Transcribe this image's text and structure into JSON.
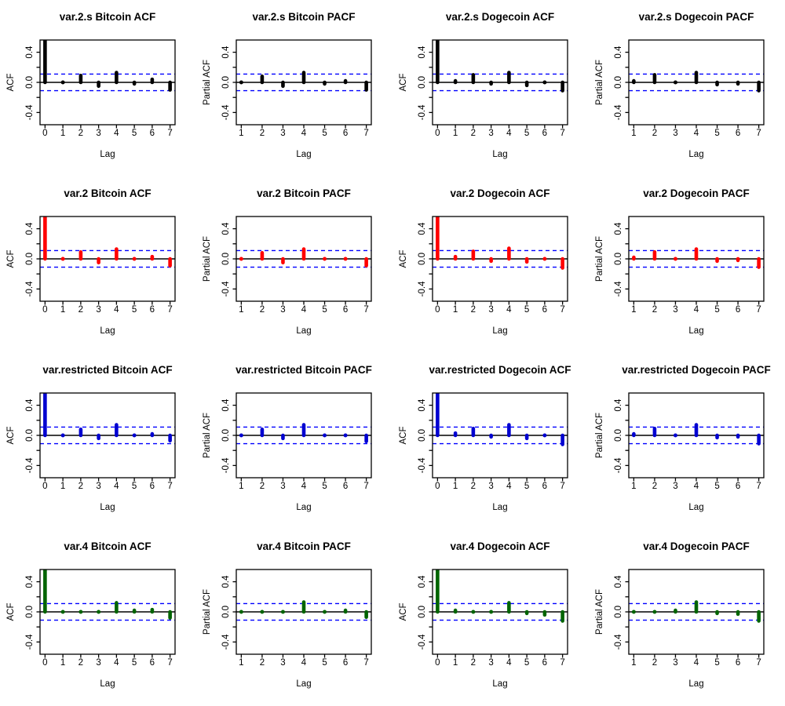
{
  "page": {
    "background": "#ffffff"
  },
  "chart_data": {
    "type": "bar",
    "subtype": "acf-pacf-grid",
    "grid": {
      "rows": 4,
      "cols": 4
    },
    "xlabel": "Lag",
    "ylim": [
      -0.5625,
      0.5625
    ],
    "yticks": [
      -0.4,
      -0.2,
      0.0,
      0.2,
      0.4
    ],
    "ytick_labels": [
      "-0.4",
      "0.0",
      "0.4"
    ],
    "ytick_label_values": [
      -0.4,
      0.0,
      0.4
    ],
    "conf_band": 0.11,
    "conf_line_color": "#0000FF",
    "zero_line_color": "#000000",
    "grid_off": true,
    "models": [
      "var.2.s",
      "var.2",
      "var.restricted",
      "var.4"
    ],
    "model_colors": [
      "#000000",
      "#FF0000",
      "#0000D0",
      "#006400"
    ],
    "charts": [
      {
        "title": "var.2.s Bitcoin ACF",
        "ylabel": "ACF",
        "color": "#000000",
        "lags": [
          0,
          1,
          2,
          3,
          4,
          5,
          6,
          7
        ],
        "values": [
          1.0,
          0.01,
          0.09,
          -0.05,
          0.13,
          -0.02,
          0.04,
          -0.1
        ]
      },
      {
        "title": "var.2.s Bitcoin PACF",
        "ylabel": "Partial ACF",
        "color": "#000000",
        "lags": [
          1,
          2,
          3,
          4,
          5,
          6,
          7
        ],
        "values": [
          0.01,
          0.08,
          -0.05,
          0.13,
          -0.02,
          0.02,
          -0.1
        ]
      },
      {
        "title": "var.2.s Dogecoin ACF",
        "ylabel": "ACF",
        "color": "#000000",
        "lags": [
          0,
          1,
          2,
          3,
          4,
          5,
          6,
          7
        ],
        "values": [
          1.0,
          0.02,
          0.1,
          -0.02,
          0.13,
          -0.04,
          0.01,
          -0.11
        ]
      },
      {
        "title": "var.2.s Dogecoin PACF",
        "ylabel": "Partial ACF",
        "color": "#000000",
        "lags": [
          1,
          2,
          3,
          4,
          5,
          6,
          7
        ],
        "values": [
          0.02,
          0.1,
          -0.01,
          0.13,
          -0.03,
          -0.02,
          -0.11
        ]
      },
      {
        "title": "var.2 Bitcoin ACF",
        "ylabel": "ACF",
        "color": "#FF0000",
        "lags": [
          0,
          1,
          2,
          3,
          4,
          5,
          6,
          7
        ],
        "values": [
          1.0,
          0.01,
          0.09,
          -0.05,
          0.13,
          -0.01,
          0.03,
          -0.09
        ]
      },
      {
        "title": "var.2 Bitcoin PACF",
        "ylabel": "Partial ACF",
        "color": "#FF0000",
        "lags": [
          1,
          2,
          3,
          4,
          5,
          6,
          7
        ],
        "values": [
          0.01,
          0.08,
          -0.05,
          0.13,
          -0.01,
          0.01,
          -0.09
        ]
      },
      {
        "title": "var.2 Dogecoin ACF",
        "ylabel": "ACF",
        "color": "#FF0000",
        "lags": [
          0,
          1,
          2,
          3,
          4,
          5,
          6,
          7
        ],
        "values": [
          1.0,
          0.03,
          0.1,
          -0.03,
          0.14,
          -0.04,
          -0.01,
          -0.12
        ]
      },
      {
        "title": "var.2 Dogecoin PACF",
        "ylabel": "Partial ACF",
        "color": "#FF0000",
        "lags": [
          1,
          2,
          3,
          4,
          5,
          6,
          7
        ],
        "values": [
          0.02,
          0.09,
          -0.01,
          0.13,
          -0.03,
          -0.02,
          -0.11
        ]
      },
      {
        "title": "var.restricted Bitcoin ACF",
        "ylabel": "ACF",
        "color": "#0000D0",
        "lags": [
          0,
          1,
          2,
          3,
          4,
          5,
          6,
          7
        ],
        "values": [
          1.0,
          0.01,
          0.08,
          -0.04,
          0.14,
          -0.01,
          0.02,
          -0.07
        ]
      },
      {
        "title": "var.restricted Bitcoin PACF",
        "ylabel": "Partial ACF",
        "color": "#0000D0",
        "lags": [
          1,
          2,
          3,
          4,
          5,
          6,
          7
        ],
        "values": [
          0.01,
          0.08,
          -0.04,
          0.14,
          -0.01,
          0.01,
          -0.08
        ]
      },
      {
        "title": "var.restricted Dogecoin ACF",
        "ylabel": "ACF",
        "color": "#0000D0",
        "lags": [
          0,
          1,
          2,
          3,
          4,
          5,
          6,
          7
        ],
        "values": [
          1.0,
          0.03,
          0.09,
          -0.02,
          0.14,
          -0.04,
          -0.01,
          -0.12
        ]
      },
      {
        "title": "var.restricted Dogecoin PACF",
        "ylabel": "Partial ACF",
        "color": "#0000D0",
        "lags": [
          1,
          2,
          3,
          4,
          5,
          6,
          7
        ],
        "values": [
          0.02,
          0.09,
          -0.01,
          0.14,
          -0.03,
          -0.02,
          -0.11
        ]
      },
      {
        "title": "var.4 Bitcoin ACF",
        "ylabel": "ACF",
        "color": "#006400",
        "lags": [
          0,
          1,
          2,
          3,
          4,
          5,
          6,
          7
        ],
        "values": [
          1.0,
          0.01,
          0.0,
          0.0,
          0.12,
          0.02,
          0.03,
          -0.08
        ]
      },
      {
        "title": "var.4 Bitcoin PACF",
        "ylabel": "Partial ACF",
        "color": "#006400",
        "lags": [
          1,
          2,
          3,
          4,
          5,
          6,
          7
        ],
        "values": [
          0.01,
          0.0,
          0.0,
          0.13,
          0.01,
          0.02,
          -0.07
        ]
      },
      {
        "title": "var.4 Dogecoin ACF",
        "ylabel": "ACF",
        "color": "#006400",
        "lags": [
          0,
          1,
          2,
          3,
          4,
          5,
          6,
          7
        ],
        "values": [
          1.0,
          0.02,
          0.01,
          0.01,
          0.12,
          -0.02,
          -0.04,
          -0.12
        ]
      },
      {
        "title": "var.4 Dogecoin PACF",
        "ylabel": "Partial ACF",
        "color": "#006400",
        "lags": [
          1,
          2,
          3,
          4,
          5,
          6,
          7
        ],
        "values": [
          0.01,
          0.01,
          0.02,
          0.13,
          -0.02,
          -0.03,
          -0.12
        ]
      }
    ]
  }
}
